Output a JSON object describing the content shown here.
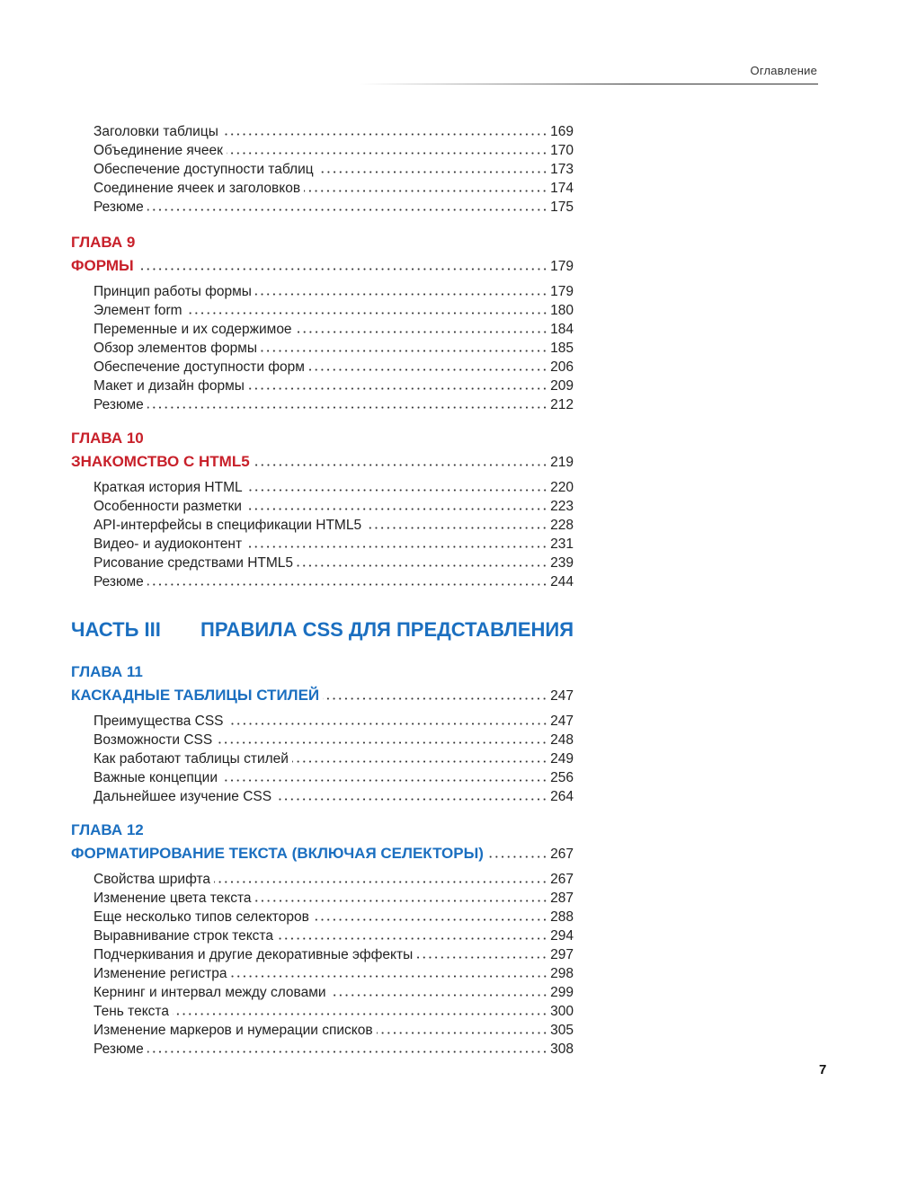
{
  "header": {
    "running_title": "Оглавление"
  },
  "colors": {
    "chapter_red": "#c8202a",
    "chapter_blue": "#1b6fc0"
  },
  "sections": [
    {
      "chapter_label": "",
      "chapter_title": "",
      "page": "",
      "color": "",
      "entries": [
        {
          "title": "Заголовки таблицы",
          "page": "169"
        },
        {
          "title": "Объединение ячеек",
          "page": "170"
        },
        {
          "title": "Обеспечение доступности таблиц",
          "page": "173"
        },
        {
          "title": "Соединение ячеек и заголовков",
          "page": "174"
        },
        {
          "title": "Резюме",
          "page": "175"
        }
      ]
    },
    {
      "chapter_label": "ГЛАВА 9",
      "chapter_title": "ФОРМЫ",
      "page": "179",
      "color": "#c8202a",
      "entries": [
        {
          "title": "Принцип работы формы",
          "page": "179"
        },
        {
          "title": "Элемент form",
          "page": "180"
        },
        {
          "title": "Переменные и их содержимое",
          "page": "184"
        },
        {
          "title": "Обзор элементов формы",
          "page": "185"
        },
        {
          "title": "Обеспечение доступности форм",
          "page": "206"
        },
        {
          "title": "Макет и дизайн формы",
          "page": "209"
        },
        {
          "title": "Резюме",
          "page": "212"
        }
      ]
    },
    {
      "chapter_label": "ГЛАВА 10",
      "chapter_title": "ЗНАКОМСТВО С HTML5",
      "page": "219",
      "color": "#c8202a",
      "entries": [
        {
          "title": "Краткая история HTML",
          "page": "220"
        },
        {
          "title": "Особенности разметки",
          "page": "223"
        },
        {
          "title": "API-интерфейсы в спецификации HTML5",
          "page": "228"
        },
        {
          "title": "Видео- и аудиоконтент",
          "page": "231"
        },
        {
          "title": "Рисование средствами HTML5",
          "page": "239"
        },
        {
          "title": "Резюме",
          "page": "244"
        }
      ]
    },
    {
      "chapter_label": "ГЛАВА 11",
      "chapter_title": "КАСКАДНЫЕ ТАБЛИЦЫ СТИЛЕЙ",
      "page": "247",
      "color": "#1b6fc0",
      "entries": [
        {
          "title": "Преимущества CSS",
          "page": "247"
        },
        {
          "title": "Возможности CSS",
          "page": "248"
        },
        {
          "title": "Как работают таблицы стилей",
          "page": "249"
        },
        {
          "title": "Важные концепции",
          "page": "256"
        },
        {
          "title": "Дальнейшее изучение CSS",
          "page": "264"
        }
      ]
    },
    {
      "chapter_label": "ГЛАВА 12",
      "chapter_title": "ФОРМАТИРОВАНИЕ ТЕКСТА (ВКЛЮЧАЯ СЕЛЕКТОРЫ)",
      "page": "267",
      "color": "#1b6fc0",
      "entries": [
        {
          "title": "Свойства шрифта",
          "page": "267"
        },
        {
          "title": "Изменение цвета текста",
          "page": "287"
        },
        {
          "title": "Еще несколько типов селекторов",
          "page": "288"
        },
        {
          "title": "Выравнивание строк текста",
          "page": "294"
        },
        {
          "title": "Подчеркивания и другие декоративные эффекты",
          "page": "297"
        },
        {
          "title": "Изменение регистра",
          "page": "298"
        },
        {
          "title": "Кернинг и интервал между словами",
          "page": "299"
        },
        {
          "title": "Тень текста",
          "page": "300"
        },
        {
          "title": "Изменение маркеров и нумерации списков",
          "page": "305"
        },
        {
          "title": "Резюме",
          "page": "308"
        }
      ]
    }
  ],
  "part": {
    "label": "ЧАСТЬ III",
    "title": "ПРАВИЛА CSS ДЛЯ ПРЕДСТАВЛЕНИЯ",
    "color": "#1b6fc0"
  },
  "page_number": "7"
}
